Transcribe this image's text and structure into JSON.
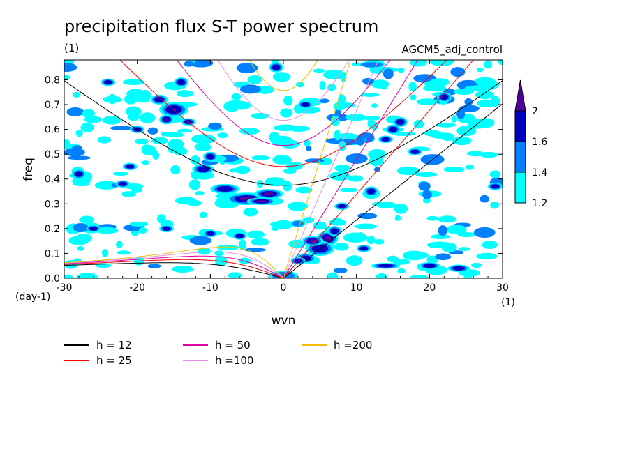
{
  "chart_data": {
    "type": "heatmap",
    "title": "precipitation flux S-T power spectrum",
    "subtitle_left": "(1)",
    "subtitle_right": "AGCM5_adj_control",
    "xlabel": "wvn",
    "ylabel": "freq",
    "x_unit": "(1)",
    "y_unit": "(day-1)",
    "xlim": [
      -30,
      30
    ],
    "ylim": [
      0,
      0.88
    ],
    "x_ticks": [
      -30,
      -20,
      -10,
      0,
      10,
      20,
      30
    ],
    "x_tick_labels": [
      "-30",
      "-20",
      "-10",
      "0",
      "10",
      "20",
      "30"
    ],
    "y_ticks": [
      0.0,
      0.1,
      0.2,
      0.3,
      0.4,
      0.5,
      0.6,
      0.7,
      0.8
    ],
    "y_tick_labels": [
      "0.0",
      "0.1",
      "0.2",
      "0.3",
      "0.4",
      "0.5",
      "0.6",
      "0.7",
      "0.8"
    ],
    "contour_levels": [
      1.2,
      1.4,
      1.6,
      2
    ],
    "colorbar": {
      "labels": [
        "1.2",
        "1.4",
        "1.6",
        "2"
      ],
      "colors": [
        "#00ffff",
        "#0080ff",
        "#0000c0",
        "#5000a0"
      ]
    },
    "dispersion_curves": [
      {
        "h": 12,
        "label": "h = 12",
        "color": "#000000"
      },
      {
        "h": 25,
        "label": "h = 25",
        "color": "#ff0000"
      },
      {
        "h": 50,
        "label": "h = 50",
        "color": "#e000a0"
      },
      {
        "h": 100,
        "label": "h =100",
        "color": "#e890e0"
      },
      {
        "h": 200,
        "label": "h =200",
        "color": "#f0c000"
      }
    ],
    "blobs": [
      [
        -5,
        0.32,
        3,
        0.025,
        3
      ],
      [
        -2,
        0.34,
        2,
        0.02,
        3
      ],
      [
        -3,
        0.31,
        2,
        0.015,
        4
      ],
      [
        -8,
        0.36,
        2,
        0.02,
        2
      ],
      [
        -11,
        0.44,
        1.5,
        0.02,
        2
      ],
      [
        -10,
        0.49,
        1,
        0.02,
        2
      ],
      [
        -15,
        0.68,
        2,
        0.03,
        2
      ],
      [
        -16,
        0.64,
        1,
        0.02,
        3
      ],
      [
        -17,
        0.72,
        1.2,
        0.02,
        2
      ],
      [
        -13,
        0.63,
        1,
        0.015,
        2
      ],
      [
        -28,
        0.42,
        1,
        0.02,
        2
      ],
      [
        -21,
        0.45,
        1,
        0.015,
        2
      ],
      [
        -1,
        0.85,
        1,
        0.02,
        2
      ],
      [
        6,
        0.16,
        1.5,
        0.03,
        3
      ],
      [
        5,
        0.12,
        2,
        0.03,
        2
      ],
      [
        3,
        0.08,
        1.5,
        0.02,
        2
      ],
      [
        7,
        0.19,
        1,
        0.02,
        2
      ],
      [
        4,
        0.15,
        1.5,
        0.02,
        3
      ],
      [
        2,
        0.07,
        1,
        0.015,
        2
      ],
      [
        15,
        0.6,
        1,
        0.02,
        2
      ],
      [
        16,
        0.63,
        1,
        0.02,
        2
      ],
      [
        22,
        0.73,
        1,
        0.02,
        2
      ],
      [
        18,
        0.51,
        1,
        0.015,
        2
      ],
      [
        14,
        0.56,
        1,
        0.015,
        2
      ],
      [
        3,
        0.7,
        1,
        0.015,
        2
      ],
      [
        20,
        0.05,
        1.5,
        0.015,
        2
      ],
      [
        24,
        0.04,
        1.5,
        0.015,
        2
      ],
      [
        14,
        0.05,
        2,
        0.012,
        2
      ],
      [
        11,
        0.12,
        1,
        0.015,
        2
      ],
      [
        -26,
        0.2,
        1,
        0.015,
        2
      ],
      [
        -20,
        0.6,
        1,
        0.015,
        2
      ],
      [
        -24,
        0.79,
        1,
        0.015,
        2
      ],
      [
        -14,
        0.79,
        1,
        0.02,
        2
      ],
      [
        -22,
        0.38,
        1,
        0.015,
        2
      ],
      [
        -10,
        0.18,
        1,
        0.015,
        2
      ],
      [
        12,
        0.35,
        1,
        0.02,
        2
      ],
      [
        29,
        0.37,
        1,
        0.015,
        2
      ],
      [
        0,
        0.01,
        2,
        0.02,
        1
      ],
      [
        8,
        0.29,
        1,
        0.015,
        2
      ],
      [
        -16,
        0.2,
        1,
        0.015,
        2
      ],
      [
        -6,
        0.17,
        1,
        0.015,
        2
      ],
      [
        2,
        0.22,
        1,
        0.015,
        1
      ]
    ],
    "grid": false
  }
}
